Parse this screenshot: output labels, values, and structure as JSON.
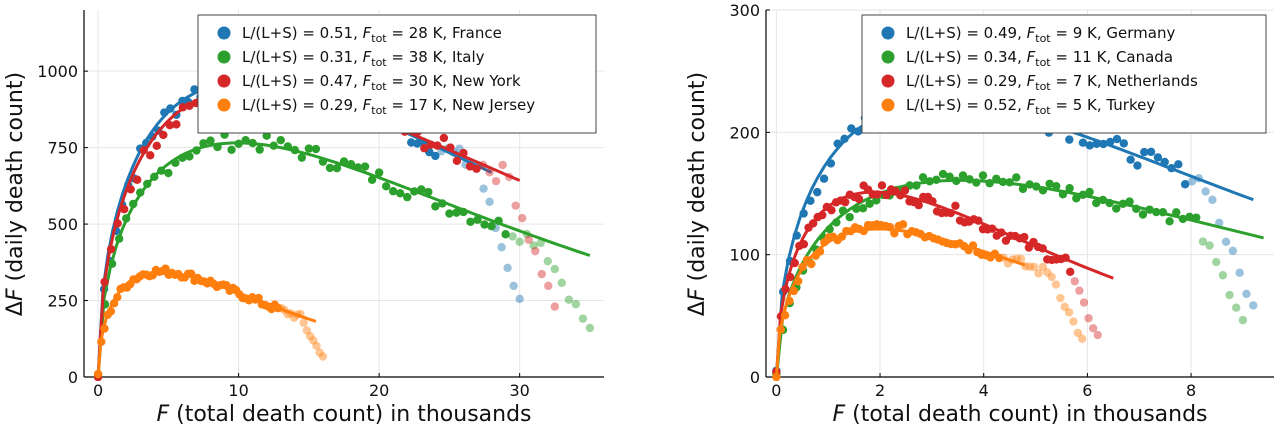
{
  "chart_data": [
    {
      "type": "scatter",
      "xlabel_var": "F",
      "xlabel_rest": " (total death count) in thousands",
      "ylabel_pre": "Δ",
      "ylabel_var": "F",
      "ylabel_rest": " (daily death count)",
      "xlim": [
        -1,
        36
      ],
      "ylim": [
        0,
        1200
      ],
      "xticks": [
        0,
        10,
        20,
        30
      ],
      "yticks": [
        0,
        250,
        500,
        750,
        1000
      ],
      "xtick_labels": [
        "0",
        "10",
        "20",
        "30"
      ],
      "ytick_labels": [
        "0",
        "250",
        "500",
        "750",
        "1000"
      ],
      "grid": true,
      "legend_position": "top-right",
      "series": [
        {
          "name": "France",
          "ratio_label": "L/(L+S) = 0.51,",
          "ftot_text": "=  28 K, France",
          "color": "#1f77b4",
          "peak_x": 10.5,
          "peak_y": 970,
          "xmax": 30,
          "xfade": 24,
          "fit": {
            "a": 0.0066,
            "b": -0.00044,
            "c": 6e-07,
            "xend": 28
          }
        },
        {
          "name": "Italy",
          "ratio_label": "L/(L+S) = 0.31,",
          "ftot_text": "=  38 K, Italy",
          "color": "#2ca02c",
          "peak_x": 10,
          "peak_y": 770,
          "xmax": 35,
          "xfade": 29,
          "fit": {
            "a": 0.0066,
            "b": -0.00044,
            "c": 6e-07,
            "xend": 35
          }
        },
        {
          "name": "New York",
          "ratio_label": "L/(L+S) = 0.47,",
          "ftot_text": "=  30 K, New York",
          "color": "#d62728",
          "peak_x": 11,
          "peak_y": 950,
          "xmax": 32.5,
          "xfade": 27,
          "fit": {
            "a": 0.0066,
            "b": -0.00044,
            "c": 6e-07,
            "xend": 30
          }
        },
        {
          "name": "New Jersey",
          "ratio_label": "L/(L+S) = 0.29,",
          "ftot_text": "=  17 K, New Jersey",
          "color": "#ff7f0e",
          "peak_x": 4.5,
          "peak_y": 345,
          "xmax": 16,
          "xfade": 13,
          "fit": {
            "a": 0.0066,
            "b": -0.00044,
            "c": 6e-07,
            "xend": 15.5
          }
        }
      ]
    },
    {
      "type": "scatter",
      "xlabel_var": "F",
      "xlabel_rest": " (total death count) in thousands",
      "ylabel_pre": "Δ",
      "ylabel_var": "F",
      "ylabel_rest": " (daily death count)",
      "xlim": [
        -0.2,
        9.6
      ],
      "ylim": [
        0,
        300
      ],
      "xticks": [
        0,
        2,
        4,
        6,
        8
      ],
      "yticks": [
        0,
        100,
        200,
        300
      ],
      "xtick_labels": [
        "0",
        "2",
        "4",
        "6",
        "8"
      ],
      "ytick_labels": [
        "0",
        "100",
        "200",
        "300"
      ],
      "grid": true,
      "legend_position": "top-right",
      "series": [
        {
          "name": "Germany",
          "ratio_label": "L/(L+S) = 0.49,",
          "ftot_text": "=    9 K, Germany",
          "color": "#1f77b4",
          "peak_x": 3.2,
          "peak_y": 225,
          "xmax": 9.2,
          "xfade": 7.9,
          "fit": {
            "xend": 9.2
          }
        },
        {
          "name": "Canada",
          "ratio_label": "L/(L+S) = 0.34,",
          "ftot_text": "=  11 K, Canada",
          "color": "#2ca02c",
          "peak_x": 3.6,
          "peak_y": 162,
          "xmax": 9.0,
          "xfade": 8.1,
          "fit": {
            "xend": 9.4
          }
        },
        {
          "name": "Netherlands",
          "ratio_label": "L/(L+S) = 0.29,",
          "ftot_text": "=    7 K, Netherlands",
          "color": "#d62728",
          "peak_x": 1.9,
          "peak_y": 152,
          "xmax": 6.2,
          "xfade": 5.7,
          "fit": {
            "xend": 6.5
          }
        },
        {
          "name": "Turkey",
          "ratio_label": "L/(L+S) = 0.52,",
          "ftot_text": "=    5 K, Turkey",
          "color": "#ff7f0e",
          "peak_x": 2.0,
          "peak_y": 122,
          "xmax": 5.9,
          "xfade": 4.3,
          "fit": {
            "xend": 4.8
          }
        }
      ]
    }
  ]
}
